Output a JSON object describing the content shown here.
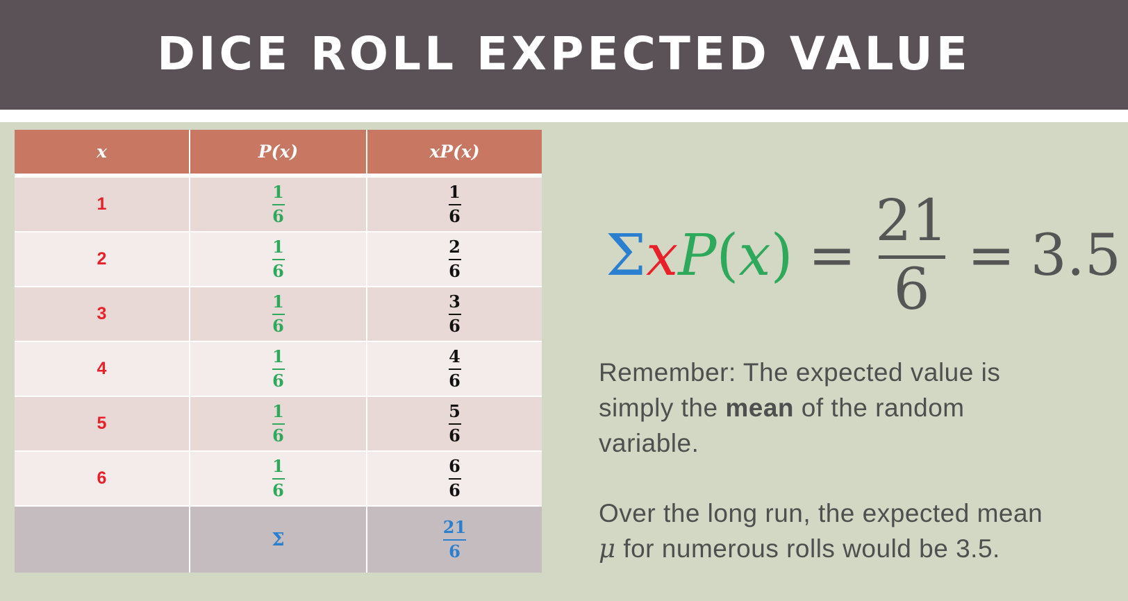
{
  "title": "DICE ROLL EXPECTED VALUE",
  "table": {
    "headers": [
      "x",
      "P(x)",
      "xP(x)"
    ],
    "rows": [
      {
        "x": "1",
        "p_num": "1",
        "p_den": "6",
        "xp_num": "1",
        "xp_den": "6"
      },
      {
        "x": "2",
        "p_num": "1",
        "p_den": "6",
        "xp_num": "2",
        "xp_den": "6"
      },
      {
        "x": "3",
        "p_num": "1",
        "p_den": "6",
        "xp_num": "3",
        "xp_den": "6"
      },
      {
        "x": "4",
        "p_num": "1",
        "p_den": "6",
        "xp_num": "4",
        "xp_den": "6"
      },
      {
        "x": "5",
        "p_num": "1",
        "p_den": "6",
        "xp_num": "5",
        "xp_den": "6"
      },
      {
        "x": "6",
        "p_num": "1",
        "p_den": "6",
        "xp_num": "6",
        "xp_den": "6"
      }
    ],
    "sum_row": {
      "label": "Σ",
      "num": "21",
      "den": "6"
    }
  },
  "formula": {
    "sigma": "Σ",
    "x": "x",
    "p": "P",
    "paren_open": "(",
    "paren_x": "x",
    "paren_close": ")",
    "eq1": "=",
    "frac_num": "21",
    "frac_den": "6",
    "eq2": "=",
    "result": "3.5"
  },
  "notes": {
    "remember_prefix": "Remember: The expected value is simply the",
    "remember_bold": "mean",
    "remember_suffix": "of the random variable.",
    "over_mu": "μ",
    "over_prefix": "Over the long run, the expected mean",
    "over_suffix": "for numerous rolls would be 3.5."
  },
  "colors": {
    "title_bar": "#5a5256",
    "header_row": "#c87762",
    "x_red": "#e8202a",
    "p_green": "#2ea85a",
    "sum_blue": "#2a7fce",
    "background": "#d3d8c4"
  }
}
